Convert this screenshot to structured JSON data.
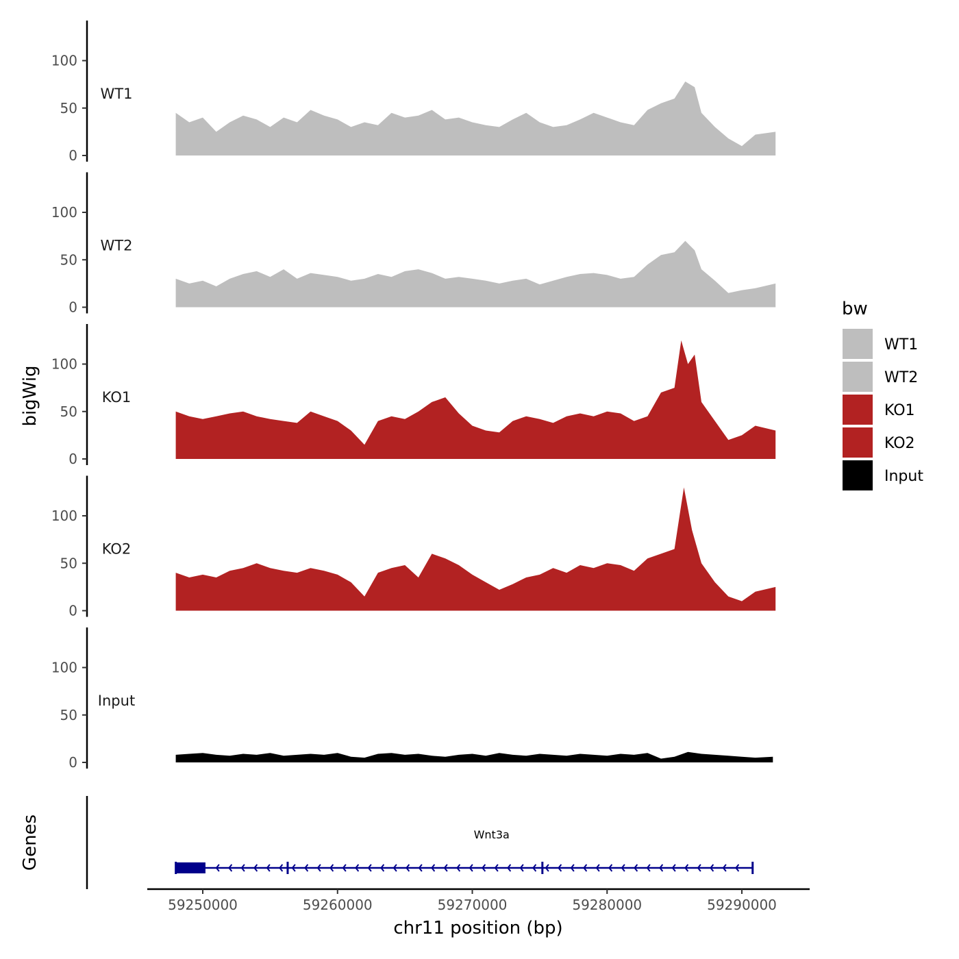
{
  "chart_data": {
    "type": "area",
    "xlabel": "chr11 position (bp)",
    "ylabel": "bigWig",
    "gene_panel_label": "Genes",
    "xlim": [
      59244000,
      59295000
    ],
    "x_ticks": [
      59250000,
      59260000,
      59270000,
      59280000,
      59290000
    ],
    "x_tick_labels": [
      "59250000",
      "59260000",
      "59270000",
      "59280000",
      "59290000"
    ],
    "ylim": [
      0,
      140
    ],
    "y_ticks": [
      0,
      50,
      100
    ],
    "y_tick_labels": [
      "0",
      "50",
      "100"
    ],
    "data_range": [
      59248000,
      59292500
    ],
    "tracks": [
      {
        "name": "WT1",
        "color": "#bebebe",
        "x": [
          59248000,
          59249000,
          59250000,
          59251000,
          59252000,
          59253000,
          59254000,
          59255000,
          59256000,
          59257000,
          59258000,
          59259000,
          59260000,
          59261000,
          59262000,
          59263000,
          59264000,
          59265000,
          59266000,
          59267000,
          59268000,
          59269000,
          59270000,
          59271000,
          59272000,
          59273000,
          59274000,
          59275000,
          59276000,
          59277000,
          59278000,
          59279000,
          59280000,
          59281000,
          59282000,
          59283000,
          59284000,
          59285000,
          59285800,
          59286500,
          59287000,
          59288000,
          59289000,
          59290000,
          59291000,
          59292500
        ],
        "values": [
          45,
          35,
          40,
          25,
          35,
          42,
          38,
          30,
          40,
          35,
          48,
          42,
          38,
          30,
          35,
          32,
          45,
          40,
          42,
          48,
          38,
          40,
          35,
          32,
          30,
          38,
          45,
          35,
          30,
          32,
          38,
          45,
          40,
          35,
          32,
          48,
          55,
          60,
          78,
          72,
          45,
          30,
          18,
          10,
          22,
          25
        ]
      },
      {
        "name": "WT2",
        "color": "#bebebe",
        "x": [
          59248000,
          59249000,
          59250000,
          59251000,
          59252000,
          59253000,
          59254000,
          59255000,
          59256000,
          59257000,
          59258000,
          59259000,
          59260000,
          59261000,
          59262000,
          59263000,
          59264000,
          59265000,
          59266000,
          59267000,
          59268000,
          59269000,
          59270000,
          59271000,
          59272000,
          59273000,
          59274000,
          59275000,
          59276000,
          59277000,
          59278000,
          59279000,
          59280000,
          59281000,
          59282000,
          59283000,
          59284000,
          59285000,
          59285800,
          59286500,
          59287000,
          59288000,
          59289000,
          59290000,
          59291000,
          59292500
        ],
        "values": [
          30,
          25,
          28,
          22,
          30,
          35,
          38,
          32,
          40,
          30,
          36,
          34,
          32,
          28,
          30,
          35,
          32,
          38,
          40,
          36,
          30,
          32,
          30,
          28,
          25,
          28,
          30,
          24,
          28,
          32,
          35,
          36,
          34,
          30,
          32,
          45,
          55,
          58,
          70,
          60,
          40,
          28,
          15,
          18,
          20,
          25
        ]
      },
      {
        "name": "KO1",
        "color": "#b22222",
        "x": [
          59248000,
          59249000,
          59250000,
          59251000,
          59252000,
          59253000,
          59254000,
          59255000,
          59256000,
          59257000,
          59258000,
          59259000,
          59260000,
          59261000,
          59262000,
          59263000,
          59264000,
          59265000,
          59266000,
          59267000,
          59268000,
          59269000,
          59270000,
          59271000,
          59272000,
          59273000,
          59274000,
          59275000,
          59276000,
          59277000,
          59278000,
          59279000,
          59280000,
          59281000,
          59282000,
          59283000,
          59284000,
          59285000,
          59285500,
          59286000,
          59286500,
          59287000,
          59288000,
          59289000,
          59290000,
          59291000,
          59292500
        ],
        "values": [
          50,
          45,
          42,
          45,
          48,
          50,
          45,
          42,
          40,
          38,
          50,
          45,
          40,
          30,
          15,
          40,
          45,
          42,
          50,
          60,
          65,
          48,
          35,
          30,
          28,
          40,
          45,
          42,
          38,
          45,
          48,
          45,
          50,
          48,
          40,
          45,
          70,
          75,
          125,
          100,
          110,
          60,
          40,
          20,
          25,
          35,
          30
        ]
      },
      {
        "name": "KO2",
        "color": "#b22222",
        "x": [
          59248000,
          59249000,
          59250000,
          59251000,
          59252000,
          59253000,
          59254000,
          59255000,
          59256000,
          59257000,
          59258000,
          59259000,
          59260000,
          59261000,
          59262000,
          59263000,
          59264000,
          59265000,
          59266000,
          59267000,
          59268000,
          59269000,
          59270000,
          59271000,
          59272000,
          59273000,
          59274000,
          59275000,
          59276000,
          59277000,
          59278000,
          59279000,
          59280000,
          59281000,
          59282000,
          59283000,
          59284000,
          59285000,
          59285700,
          59286300,
          59287000,
          59288000,
          59289000,
          59290000,
          59291000,
          59292500
        ],
        "values": [
          40,
          35,
          38,
          35,
          42,
          45,
          50,
          45,
          42,
          40,
          45,
          42,
          38,
          30,
          15,
          40,
          45,
          48,
          35,
          60,
          55,
          48,
          38,
          30,
          22,
          28,
          35,
          38,
          45,
          40,
          48,
          45,
          50,
          48,
          42,
          55,
          60,
          65,
          130,
          85,
          50,
          30,
          15,
          10,
          20,
          25
        ]
      },
      {
        "name": "Input",
        "color": "#000000",
        "x": [
          59248000,
          59249000,
          59250000,
          59251000,
          59252000,
          59253000,
          59254000,
          59255000,
          59256000,
          59257000,
          59258000,
          59259000,
          59260000,
          59261000,
          59262000,
          59263000,
          59264000,
          59265000,
          59266000,
          59267000,
          59268000,
          59269000,
          59270000,
          59271000,
          59272000,
          59273000,
          59274000,
          59275000,
          59276000,
          59277000,
          59278000,
          59279000,
          59280000,
          59281000,
          59282000,
          59283000,
          59284000,
          59285000,
          59286000,
          59287000,
          59288000,
          59289000,
          59290000,
          59291000,
          59292300
        ],
        "values": [
          8,
          9,
          10,
          8,
          7,
          9,
          8,
          10,
          7,
          8,
          9,
          8,
          10,
          6,
          5,
          9,
          10,
          8,
          9,
          7,
          6,
          8,
          9,
          7,
          10,
          8,
          7,
          9,
          8,
          7,
          9,
          8,
          7,
          9,
          8,
          10,
          4,
          6,
          11,
          9,
          8,
          7,
          6,
          5,
          6
        ]
      }
    ],
    "legend": {
      "title": "bw",
      "entries": [
        {
          "label": "WT1",
          "color": "#bebebe"
        },
        {
          "label": "WT2",
          "color": "#bebebe"
        },
        {
          "label": "KO1",
          "color": "#b22222"
        },
        {
          "label": "KO2",
          "color": "#b22222"
        },
        {
          "label": "Input",
          "color": "#000000"
        }
      ]
    },
    "gene": {
      "name": "Wnt3a",
      "strand": "-",
      "color": "#00008b",
      "start": 59248000,
      "end": 59290800,
      "thick_start": 59248000,
      "thick_end": 59250200,
      "exons": [
        59248000,
        59256300,
        59275200,
        59290800
      ]
    }
  }
}
